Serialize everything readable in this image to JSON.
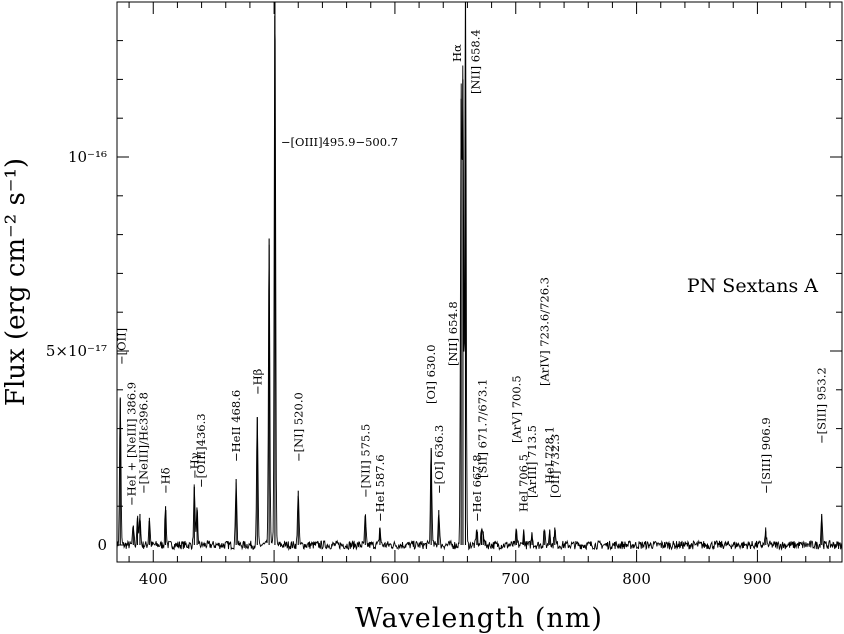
{
  "chart_data": {
    "type": "line",
    "title": "",
    "xlabel": "Wavelength (nm)",
    "ylabel": "Flux (erg cm⁻² s⁻¹)",
    "xlim": [
      370,
      970
    ],
    "ylim": [
      -5e-19,
      1.38e-16
    ],
    "x_ticks": [
      {
        "value": 400,
        "label": "400"
      },
      {
        "value": 500,
        "label": "500"
      },
      {
        "value": 600,
        "label": "600"
      },
      {
        "value": 700,
        "label": "700"
      },
      {
        "value": 800,
        "label": "800"
      },
      {
        "value": 900,
        "label": "900"
      }
    ],
    "y_ticks": [
      {
        "value": 0,
        "label": "0"
      },
      {
        "value": 5e-17,
        "label": "5×10⁻¹⁷"
      },
      {
        "value": 1e-16,
        "label": "10⁻¹⁶"
      }
    ],
    "annotation": "PN Sextans A",
    "series": [
      {
        "line_color": "#000000",
        "peaks": [
          {
            "x": 372.7,
            "y": 3.8e-17
          },
          {
            "x": 383.5,
            "y": 5e-18
          },
          {
            "x": 386.9,
            "y": 7e-18
          },
          {
            "x": 389.0,
            "y": 8e-18
          },
          {
            "x": 396.8,
            "y": 7e-18
          },
          {
            "x": 410.2,
            "y": 1e-17
          },
          {
            "x": 434.0,
            "y": 1.5e-17
          },
          {
            "x": 436.3,
            "y": 9e-18
          },
          {
            "x": 468.6,
            "y": 1.7e-17
          },
          {
            "x": 486.1,
            "y": 3.3e-17
          },
          {
            "x": 495.9,
            "y": 7.9e-17
          },
          {
            "x": 500.7,
            "y": 1.45e-16
          },
          {
            "x": 520.0,
            "y": 1.4e-17
          },
          {
            "x": 575.5,
            "y": 7.5e-18
          },
          {
            "x": 587.6,
            "y": 4.5e-18
          },
          {
            "x": 630.0,
            "y": 2.5e-17
          },
          {
            "x": 636.3,
            "y": 9e-18
          },
          {
            "x": 654.8,
            "y": 1.15e-16
          },
          {
            "x": 656.3,
            "y": 1.2e-16
          },
          {
            "x": 658.4,
            "y": 1.45e-16
          },
          {
            "x": 667.8,
            "y": 4e-18
          },
          {
            "x": 671.7,
            "y": 4e-18
          },
          {
            "x": 673.1,
            "y": 3.5e-18
          },
          {
            "x": 700.5,
            "y": 3.5e-18
          },
          {
            "x": 706.5,
            "y": 3.5e-18
          },
          {
            "x": 713.5,
            "y": 3e-18
          },
          {
            "x": 723.6,
            "y": 4e-18
          },
          {
            "x": 728.1,
            "y": 4e-18
          },
          {
            "x": 732.3,
            "y": 4.5e-18
          },
          {
            "x": 906.9,
            "y": 3.5e-18
          },
          {
            "x": 953.2,
            "y": 8e-18
          }
        ]
      }
    ],
    "line_labels": [
      {
        "text": "−[OII]",
        "x": 372.7
      },
      {
        "text": "−HeI + [NeIII] 386.9",
        "x": 386.9
      },
      {
        "text": "−[NeIII]/Hε396.8",
        "x": 396.8
      },
      {
        "text": "−Hδ",
        "x": 410.2
      },
      {
        "text": "−Hγ",
        "x": 434.0
      },
      {
        "text": "−[OIII]436.3",
        "x": 438.0
      },
      {
        "text": "−HeII 468.6",
        "x": 468.6
      },
      {
        "text": "−Hβ",
        "x": 486.1
      },
      {
        "text": "−[NI] 520.0",
        "x": 520.0
      },
      {
        "text": "−[OIII]495.9−500.7",
        "x": 500.7
      },
      {
        "text": "−[NII] 575.5",
        "x": 575.5
      },
      {
        "text": "−HeI 587.6",
        "x": 587.6
      },
      {
        "text": "[OI] 630.0",
        "x": 630.0
      },
      {
        "text": "−[OI] 636.3",
        "x": 636.3
      },
      {
        "text": "[NII] 654.8",
        "x": 654.8
      },
      {
        "text": "Hα",
        "x": 656.3
      },
      {
        "text": "[NII] 658.4",
        "x": 658.4
      },
      {
        "text": "−HeI 667.8",
        "x": 667.8
      },
      {
        "text": "[SII] 671.7/673.1",
        "x": 672.4
      },
      {
        "text": "[ArV] 700.5",
        "x": 700.5
      },
      {
        "text": "HeI 706.5",
        "x": 706.5
      },
      {
        "text": "[ArIII] 713.5",
        "x": 713.5
      },
      {
        "text": "[ArIV] 723.6/726.3",
        "x": 723.6
      },
      {
        "text": "HeI 728.1",
        "x": 728.1
      },
      {
        "text": "[OII] 732.3",
        "x": 732.3
      },
      {
        "text": "−[SIII] 906.9",
        "x": 906.9
      },
      {
        "text": "−[SIII] 953.2",
        "x": 953.2
      }
    ]
  }
}
